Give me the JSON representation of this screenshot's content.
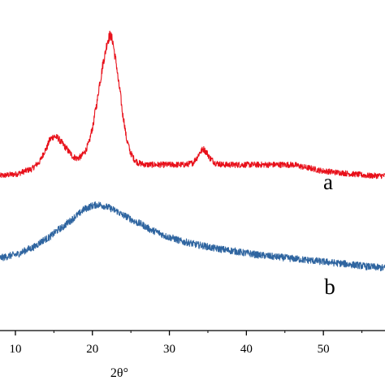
{
  "chart_data": {
    "type": "line",
    "xlabel": "2θ°",
    "ylabel": "",
    "title": "",
    "xlim": [
      8,
      58
    ],
    "ylim": [
      0,
      100
    ],
    "y_axis_ticks_labels": false,
    "x_ticks": [
      10,
      20,
      30,
      40,
      50
    ],
    "x_tick_labels": [
      "10",
      "20",
      "30",
      "40",
      "50"
    ],
    "colors": {
      "a": "#e8101a",
      "b": "#2f65a0",
      "axis": "#000000"
    },
    "series": [
      {
        "label": "a",
        "color": "#e8101a",
        "x": [
          8,
          10,
          12,
          13,
          14,
          14.5,
          15,
          15.5,
          16,
          16.5,
          17,
          17.5,
          18,
          18.5,
          19,
          19.5,
          20,
          20.5,
          21,
          21.5,
          22,
          22.3,
          22.6,
          23,
          23.5,
          24,
          24.5,
          25,
          25.5,
          26,
          27,
          28,
          30,
          32,
          33,
          33.5,
          34,
          34.4,
          34.8,
          35.3,
          36,
          37,
          38,
          40,
          42,
          44,
          46,
          48,
          50,
          52,
          54,
          56,
          58
        ],
        "y": [
          49,
          49.5,
          51,
          53,
          57.5,
          60.5,
          61.5,
          61,
          59.5,
          58,
          56.5,
          55,
          54.5,
          55,
          56.5,
          59,
          64,
          71,
          79,
          86,
          92,
          93.5,
          92,
          86,
          77,
          67.5,
          60,
          56,
          54,
          53,
          52.5,
          52.5,
          52.5,
          52.5,
          53,
          54.5,
          56.5,
          57.5,
          56.5,
          54.5,
          53,
          52.5,
          52.5,
          52.5,
          52.5,
          52.5,
          52.5,
          51.5,
          50.5,
          50,
          49.5,
          49,
          49
        ]
      },
      {
        "label": "b",
        "color": "#2f65a0",
        "x": [
          8,
          10,
          12,
          14,
          16,
          17,
          18,
          19,
          20,
          20.5,
          21,
          21.5,
          22,
          23,
          24,
          26,
          28,
          30,
          32,
          34,
          36,
          38,
          40,
          42,
          44,
          46,
          48,
          50,
          52,
          54,
          56,
          58
        ],
        "y": [
          23,
          24,
          26,
          29,
          32.5,
          34.5,
          36.5,
          38.5,
          39.5,
          39.8,
          39.8,
          39.5,
          39,
          38,
          36.5,
          34,
          31.5,
          29.5,
          28,
          27,
          26,
          25.3,
          24.5,
          23.8,
          23.3,
          22.8,
          22.3,
          21.8,
          21.3,
          20.8,
          20.2,
          19.8
        ]
      }
    ]
  }
}
